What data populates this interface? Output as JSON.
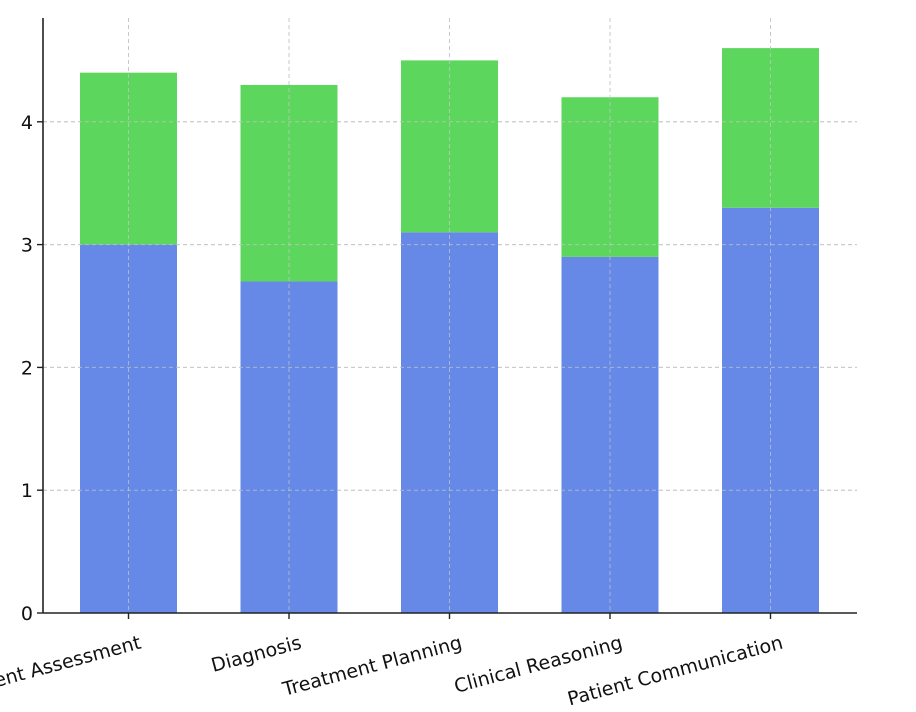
{
  "chart_data": {
    "type": "bar",
    "stacked": true,
    "categories": [
      "Patient Assessment",
      "Diagnosis",
      "Treatment Planning",
      "Clinical Reasoning",
      "Patient Communication"
    ],
    "series": [
      {
        "values": [
          3.0,
          2.7,
          3.1,
          2.9,
          3.3
        ],
        "color": "#6688e6"
      },
      {
        "values": [
          1.4,
          1.6,
          1.4,
          1.3,
          1.3
        ],
        "color": "#5cd65c"
      }
    ],
    "ylim": [
      0,
      4.75
    ],
    "yticks": [
      0,
      1,
      2,
      3,
      4
    ],
    "grid": true,
    "title": "",
    "xlabel": "",
    "ylabel": ""
  }
}
